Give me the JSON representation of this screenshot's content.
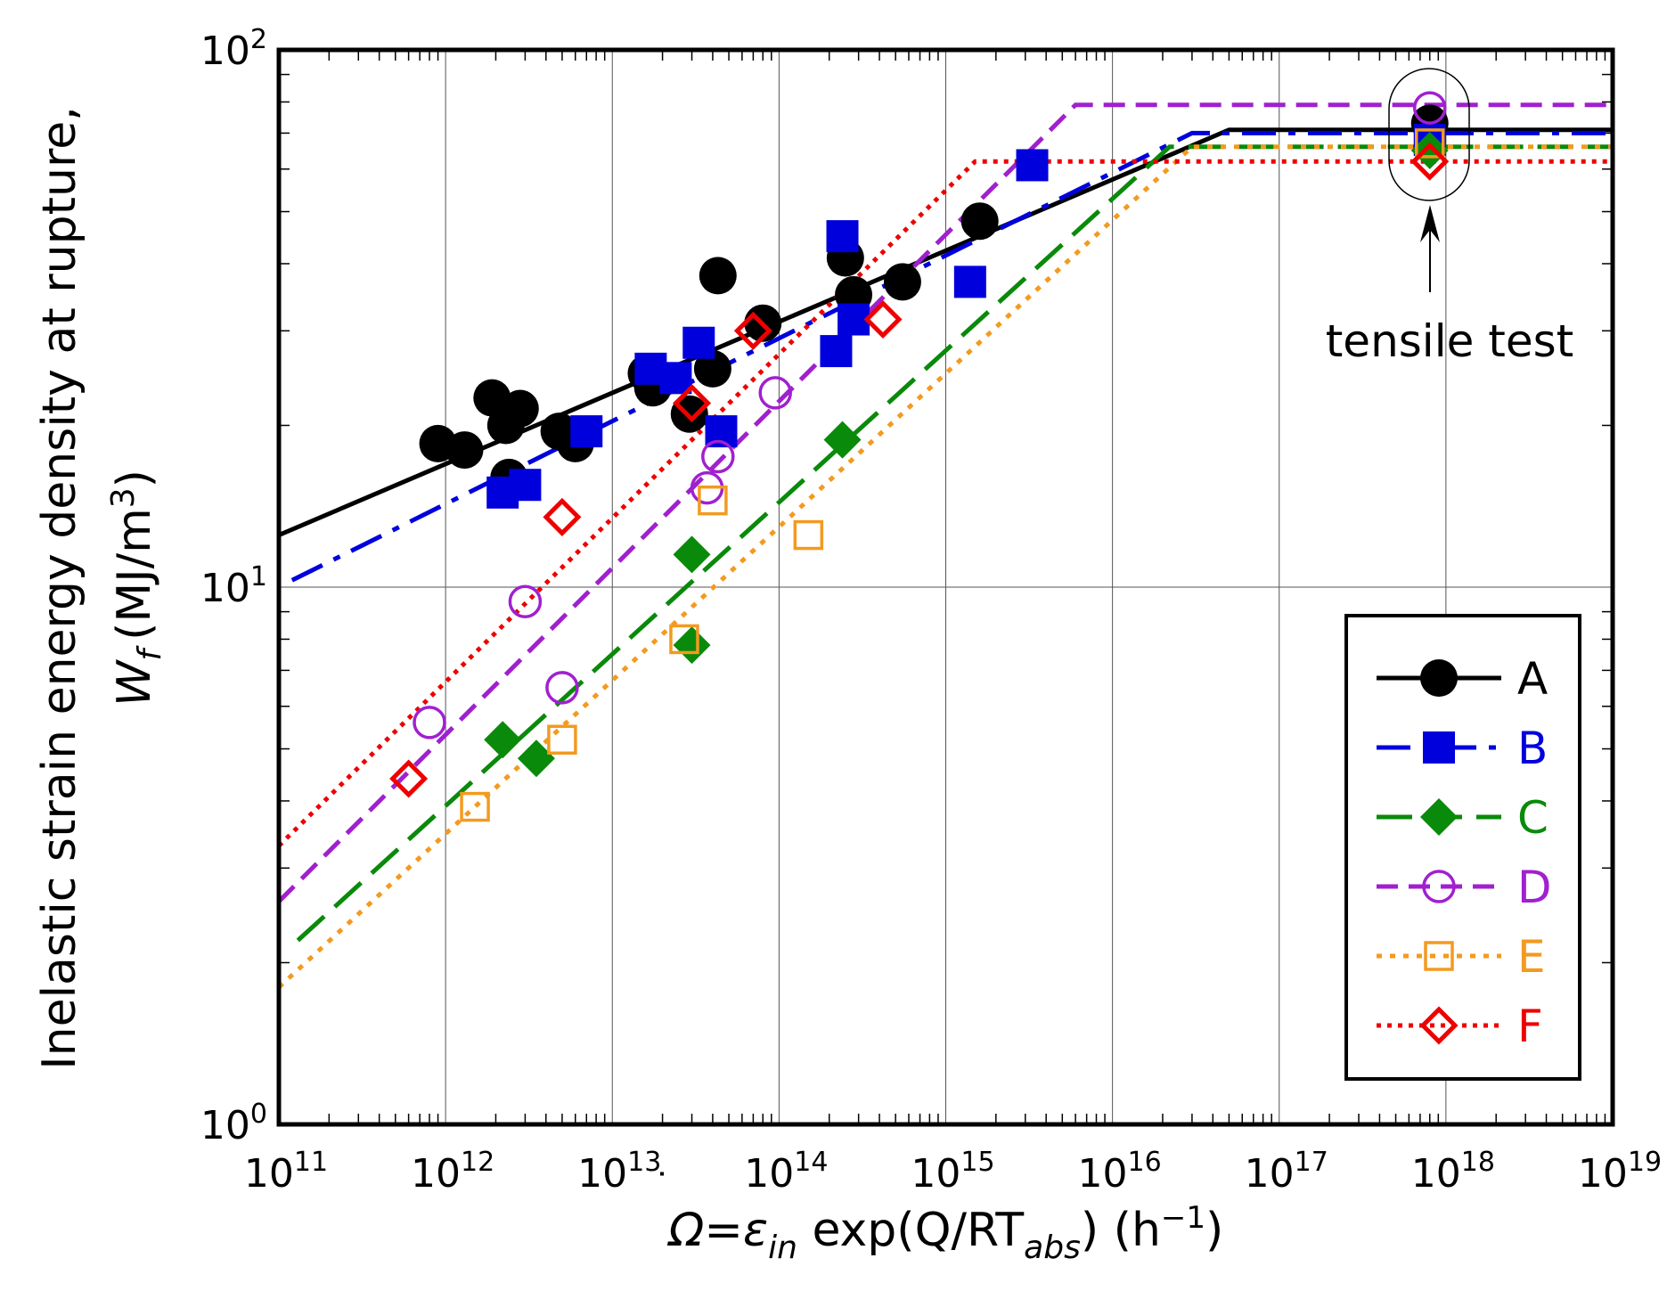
{
  "chart_data": {
    "type": "scatter",
    "title": "",
    "ylabel": {
      "main": "Inelastic strain energy density at rupture,",
      "symbol": "W",
      "symbol_sub": "f",
      "unit": "(MJ/m",
      "unit_sup": "3",
      "unit_close": ")"
    },
    "xlabel": {
      "lhs": "Ω=ε",
      "sub1": "in",
      "mid": " exp(Q/RT",
      "sub2": "abs",
      "rhs": ")  (h",
      "sup": "−1",
      "close": ")"
    },
    "x_scale": "log",
    "y_scale": "log",
    "xlim": [
      100000000000.0,
      1e+19
    ],
    "ylim": [
      1,
      100
    ],
    "x_ticks": [
      {
        "base": "10",
        "exp": "11",
        "value": 100000000000.0
      },
      {
        "base": "10",
        "exp": "12",
        "value": 1000000000000.0
      },
      {
        "base": "10",
        "exp": "13",
        "value": 10000000000000.0
      },
      {
        "base": "10",
        "exp": "14",
        "value": 100000000000000.0
      },
      {
        "base": "10",
        "exp": "15",
        "value": 1000000000000000.0
      },
      {
        "base": "10",
        "exp": "16",
        "value": 1e+16
      },
      {
        "base": "10",
        "exp": "17",
        "value": 1e+17
      },
      {
        "base": "10",
        "exp": "18",
        "value": 1e+18
      },
      {
        "base": "10",
        "exp": "19",
        "value": 1e+19
      }
    ],
    "y_ticks": [
      {
        "base": "10",
        "exp": "0",
        "value": 1
      },
      {
        "base": "10",
        "exp": "1",
        "value": 10
      },
      {
        "base": "10",
        "exp": "2",
        "value": 100
      }
    ],
    "grid": true,
    "legend_position": "bottom-right",
    "annotation": {
      "text": "tensile test",
      "x": 8e+17,
      "y": 70
    },
    "series": [
      {
        "name": "A",
        "color": "#000000",
        "marker": "circle-filled",
        "dash": "solid",
        "line": [
          [
            100000000000.0,
            12.5
          ],
          [
            5e+16,
            71
          ],
          [
            1e+19,
            71
          ]
        ],
        "points": [
          [
            900000000000.0,
            18.5
          ],
          [
            1300000000000.0,
            18
          ],
          [
            1900000000000.0,
            22.5
          ],
          [
            2300000000000.0,
            20
          ],
          [
            2800000000000.0,
            21.5
          ],
          [
            2400000000000.0,
            16
          ],
          [
            4800000000000.0,
            19.5
          ],
          [
            6000000000000.0,
            18.5
          ],
          [
            16000000000000.0,
            25
          ],
          [
            17500000000000.0,
            23.5
          ],
          [
            29000000000000.0,
            21
          ],
          [
            40000000000000.0,
            25.5
          ],
          [
            43000000000000.0,
            38
          ],
          [
            80000000000000.0,
            31
          ],
          [
            250000000000000.0,
            41
          ],
          [
            280000000000000.0,
            35
          ],
          [
            550000000000000.0,
            37
          ],
          [
            1600000000000000.0,
            48
          ],
          [
            8e+17,
            73
          ]
        ]
      },
      {
        "name": "B",
        "color": "#0000dd",
        "marker": "square-filled",
        "dash": "long-dash-dot",
        "line": [
          [
            120000000000.0,
            10.3
          ],
          [
            3e+16,
            70
          ],
          [
            1e+19,
            70
          ]
        ],
        "points": [
          [
            2200000000000.0,
            15
          ],
          [
            3000000000000.0,
            15.5
          ],
          [
            7000000000000.0,
            19.5
          ],
          [
            17000000000000.0,
            25.5
          ],
          [
            24000000000000.0,
            24.5
          ],
          [
            33000000000000.0,
            28.5
          ],
          [
            45000000000000.0,
            19.5
          ],
          [
            220000000000000.0,
            27.5
          ],
          [
            240000000000000.0,
            45
          ],
          [
            280000000000000.0,
            31.5
          ],
          [
            1400000000000000.0,
            37
          ],
          [
            3300000000000000.0,
            61
          ],
          [
            8e+17,
            68
          ]
        ]
      },
      {
        "name": "C",
        "color": "#0a8a0a",
        "marker": "diamond-filled",
        "dash": "long-dash",
        "line": [
          [
            130000000000.0,
            2.2
          ],
          [
            2.2e+16,
            66
          ],
          [
            1e+19,
            66
          ]
        ],
        "points": [
          [
            2200000000000.0,
            5.2
          ],
          [
            3500000000000.0,
            4.8
          ],
          [
            30000000000000.0,
            11.5
          ],
          [
            30000000000000.0,
            7.8
          ],
          [
            240000000000000.0,
            18.8
          ],
          [
            8e+17,
            65
          ]
        ]
      },
      {
        "name": "D",
        "color": "#a020d0",
        "marker": "circle-open",
        "dash": "dash",
        "line": [
          [
            100000000000.0,
            2.6
          ],
          [
            6000000000000000.0,
            79
          ],
          [
            1e+19,
            79
          ]
        ],
        "points": [
          [
            800000000000.0,
            5.6
          ],
          [
            3000000000000.0,
            9.4
          ],
          [
            5000000000000.0,
            6.5
          ],
          [
            37000000000000.0,
            15.3
          ],
          [
            43000000000000.0,
            17.5
          ],
          [
            95000000000000.0,
            23
          ],
          [
            8e+17,
            78
          ]
        ]
      },
      {
        "name": "E",
        "color": "#f39a1f",
        "marker": "square-open",
        "dash": "dot",
        "line": [
          [
            100000000000.0,
            1.8
          ],
          [
            3e+16,
            66
          ],
          [
            1e+19,
            66
          ]
        ],
        "points": [
          [
            1500000000000.0,
            3.9
          ],
          [
            5000000000000.0,
            5.2
          ],
          [
            27000000000000.0,
            8
          ],
          [
            40000000000000.0,
            14.5
          ],
          [
            150000000000000.0,
            12.5
          ],
          [
            8e+17,
            67
          ]
        ]
      },
      {
        "name": "F",
        "color": "#ee0000",
        "marker": "diamond-open",
        "dash": "fine-dot",
        "line": [
          [
            100000000000.0,
            3.3
          ],
          [
            1500000000000000.0,
            62
          ],
          [
            1e+19,
            62
          ]
        ],
        "points": [
          [
            600000000000.0,
            4.4
          ],
          [
            5000000000000.0,
            13.5
          ],
          [
            30000000000000.0,
            22
          ],
          [
            70000000000000.0,
            30
          ],
          [
            420000000000000.0,
            31.5
          ],
          [
            8e+17,
            62
          ]
        ]
      }
    ]
  }
}
